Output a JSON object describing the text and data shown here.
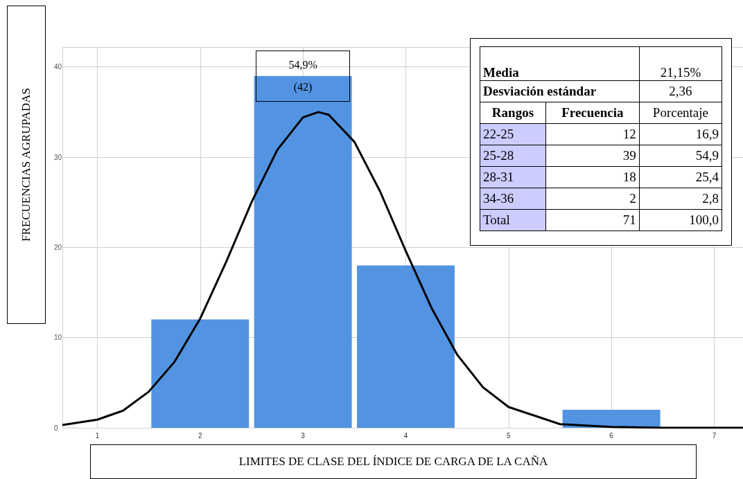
{
  "chart_data": {
    "type": "bar",
    "xlabel": "LIMITES DE CLASE DEL ÍNDICE DE CARGA DE LA CAÑA",
    "ylabel": "FRECUENCIAS AGRUPADAS",
    "series": [
      {
        "color": "#5294e2",
        "x": [
          2,
          3,
          4,
          6
        ],
        "values": [
          12,
          39,
          18,
          2
        ]
      },
      {
        "type": "line",
        "color": "#000000",
        "marker": "none",
        "x": [
          0.66,
          1,
          1.25,
          1.5,
          1.75,
          2,
          2.25,
          2.5,
          2.75,
          3,
          3.15,
          3.25,
          3.5,
          3.75,
          4,
          4.25,
          4.5,
          4.75,
          5,
          5.5,
          6,
          6.5,
          7.28
        ],
        "values": [
          0.3,
          0.9,
          1.9,
          4,
          7.3,
          12.1,
          18.3,
          25,
          30.8,
          34.4,
          35,
          34.7,
          31.7,
          26.2,
          19.6,
          13.3,
          8.1,
          4.5,
          2.3,
          0.4,
          0.1,
          0,
          0
        ]
      }
    ],
    "xlim": [
      0.66,
      7.28
    ],
    "xticks": [
      1,
      2,
      3,
      4,
      5,
      6,
      7
    ],
    "ylim": [
      0,
      42.2
    ],
    "yticks": [
      0,
      10,
      20,
      30,
      40
    ],
    "grid": true,
    "annotations": [
      {
        "text": "54,9%\n(42)",
        "x": 3,
        "y": 39
      },
      "Media",
      "21,15%",
      "Desviación estándar",
      "2,36",
      "Rangos",
      "Frecuencia",
      "Porcentaje",
      "22-25",
      "12",
      "16,9",
      "25-28",
      "39",
      "54,9",
      "28-31",
      "18",
      "25,4",
      "34-36",
      "2",
      "2,8",
      "Total",
      "71",
      "100,0"
    ]
  }
}
